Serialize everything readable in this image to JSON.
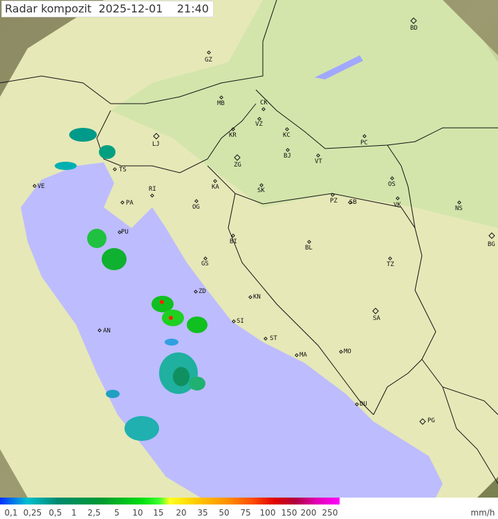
{
  "title": {
    "label": "Radar kompozit",
    "date": "2025-12-01",
    "time": "21:40"
  },
  "legend": {
    "ticks": [
      "0,1",
      "0,25",
      "0,5",
      "1",
      "2,5",
      "5",
      "10",
      "15",
      "20",
      "35",
      "50",
      "75",
      "100",
      "150",
      "200",
      "250"
    ],
    "unit": "mm/h"
  },
  "cities": [
    "BD",
    "GZ",
    "MB",
    "CK",
    "VZ",
    "KR",
    "KC",
    "PC",
    "LJ",
    "ZG",
    "BJ",
    "VT",
    "TS",
    "VE",
    "RI",
    "KA",
    "SK",
    "OS",
    "PA",
    "OG",
    "PZ",
    "SB",
    "VK",
    "NS",
    "PU",
    "BG",
    "BI",
    "BL",
    "GS",
    "TZ",
    "ZD",
    "KN",
    "SA",
    "AN",
    "SI",
    "ST",
    "MA",
    "MO",
    "DU",
    "PG"
  ],
  "colors": {
    "sea": "#bcbcff",
    "land": "#d8e8b0",
    "outside": "#8a8a60",
    "light_rain": "#00c0c0",
    "moderate_rain": "#00b030"
  }
}
